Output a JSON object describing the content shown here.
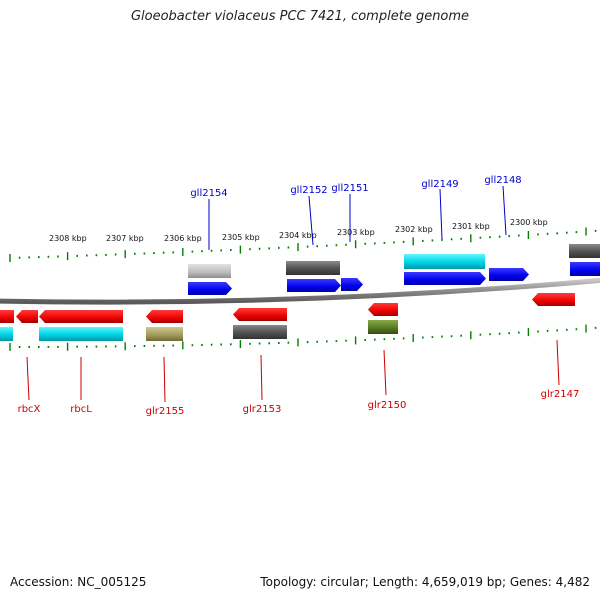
{
  "title": "Gloeobacter violaceus PCC 7421, complete genome",
  "footer": {
    "accession": "Accession: NC_005125",
    "summary": "Topology: circular; Length: 4,659,019 bp; Genes: 4,482"
  },
  "scale_labels": [
    "2308 kbp",
    "2307 kbp",
    "2306 kbp",
    "2305 kbp",
    "2304 kbp",
    "2303 kbp",
    "2302 kbp",
    "2301 kbp",
    "2300 kbp"
  ],
  "gene_labels": {
    "top": [
      "gll2154",
      "gll2152",
      "gll2151",
      "gll2149",
      "gll2148"
    ],
    "bottom": [
      "rbcX",
      "rbcL",
      "glr2155",
      "glr2153",
      "glr2150",
      "glr2147"
    ]
  },
  "colors": {
    "forward_strand": "#0000ff",
    "reverse_strand": "#ff0000",
    "tick": "#008000",
    "backbone": "#808080",
    "cyan_block": "#00ccdd",
    "gray_block": "#555555",
    "light_gray_block": "#bbbbbb",
    "olive_block": "#a09858",
    "green_block": "#557722"
  }
}
